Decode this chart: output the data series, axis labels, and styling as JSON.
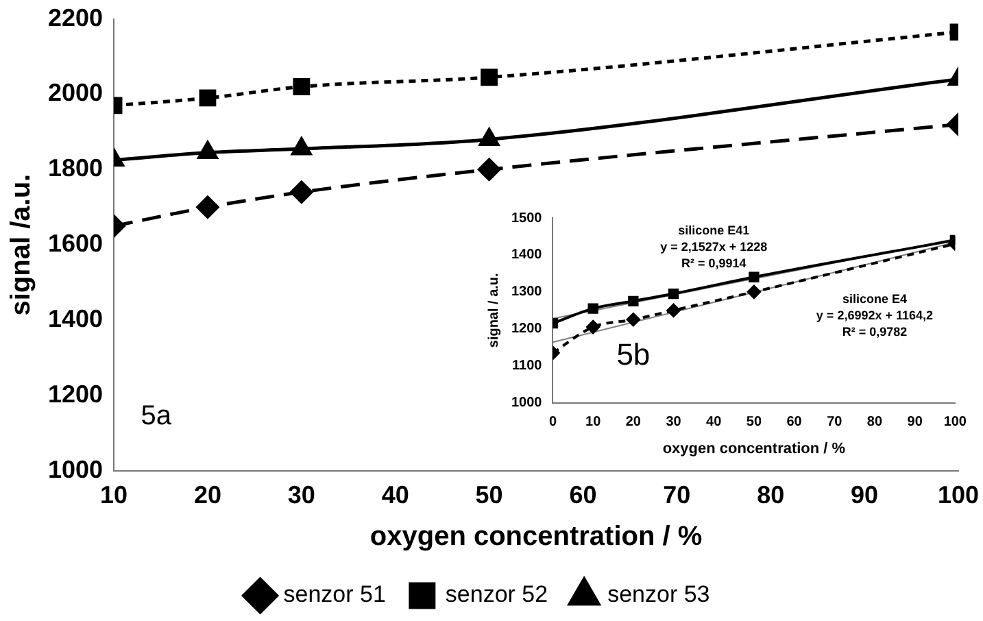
{
  "chart_data": [
    {
      "type": "line",
      "xlabel": "oxygen concentration / %",
      "ylabel": "signal /a.u.",
      "xlim": [
        10,
        100
      ],
      "xticks": [
        10,
        20,
        30,
        40,
        50,
        60,
        70,
        80,
        90,
        100
      ],
      "ylim": [
        1000,
        2200
      ],
      "yticks": [
        1000,
        1200,
        1400,
        1600,
        1800,
        2000,
        2200
      ],
      "grid": false,
      "legend": "bottom",
      "annotations": [
        "5a"
      ],
      "series": [
        {
          "name": "senzor 51",
          "color": "#000000",
          "marker": "diamond",
          "line_style": "dashed",
          "x": [
            10,
            20,
            30,
            50,
            100
          ],
          "values": [
            1650,
            1700,
            1740,
            1800,
            1920
          ]
        },
        {
          "name": "senzor 52",
          "color": "#000000",
          "marker": "square",
          "line_style": "dotted",
          "x": [
            10,
            20,
            30,
            50,
            100
          ],
          "values": [
            1970,
            1990,
            2020,
            2045,
            2165
          ]
        },
        {
          "name": "senzor 53",
          "color": "#000000",
          "marker": "triangle",
          "line_style": "solid",
          "x": [
            10,
            20,
            30,
            50,
            100
          ],
          "values": [
            1825,
            1845,
            1855,
            1880,
            2040
          ]
        }
      ]
    },
    {
      "type": "line",
      "xlabel": "oxygen concentration / %",
      "ylabel": "signal / a.u.",
      "xlim": [
        0,
        100
      ],
      "xticks": [
        0,
        10,
        20,
        30,
        40,
        50,
        60,
        70,
        80,
        90,
        100
      ],
      "ylim": [
        1000,
        1500
      ],
      "yticks": [
        1000,
        1100,
        1200,
        1300,
        1400,
        1500
      ],
      "grid": false,
      "legend": false,
      "annotations": [
        "silicone E41",
        "y = 2,1527x + 1228",
        "R² = 0,9914",
        "silicone E4",
        "y = 2,6992x + 1164,2",
        "R² = 0,9782",
        "5b"
      ],
      "series": [
        {
          "color": "#000000",
          "marker": "square",
          "line_style": "solid",
          "x": [
            0,
            10,
            20,
            30,
            50,
            100
          ],
          "values": [
            1215,
            1255,
            1275,
            1295,
            1340,
            1440
          ]
        },
        {
          "color": "#000000",
          "marker": "diamond",
          "line_style": "dotted",
          "x": [
            0,
            10,
            20,
            30,
            50,
            100
          ],
          "values": [
            1135,
            1205,
            1225,
            1250,
            1300,
            1430
          ]
        },
        {
          "color": "#808080",
          "marker": "none",
          "line_style": "solid",
          "x": [
            0,
            100
          ],
          "values": [
            1228,
            1443
          ]
        },
        {
          "color": "#808080",
          "marker": "none",
          "line_style": "solid",
          "x": [
            0,
            100
          ],
          "values": [
            1164,
            1434
          ]
        }
      ]
    }
  ]
}
